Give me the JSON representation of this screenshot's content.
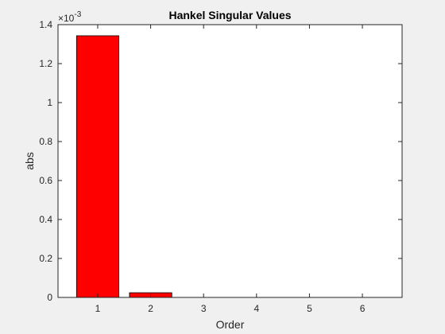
{
  "chart_data": {
    "type": "bar",
    "title": "Hankel Singular Values",
    "xlabel": "Order",
    "ylabel": "abs",
    "categories": [
      "1",
      "2",
      "3",
      "4",
      "5",
      "6"
    ],
    "values": [
      0.001343,
      2.41e-05,
      2e-07,
      1e-07,
      5e-08,
      2e-08
    ],
    "ylim": [
      0,
      0.0014
    ],
    "xlim": [
      0.25,
      6.75
    ],
    "y_tick_labels": [
      "0",
      "0.2",
      "0.4",
      "0.6",
      "0.8",
      "1",
      "1.2",
      "1.4"
    ],
    "y_exponent_text": "×10",
    "y_exponent_power": "-3",
    "bar_color": "#ff0000",
    "bar_edge_color": "#000000",
    "background_color": "#f0f0f0",
    "axes_color": "#ffffff",
    "grid": false
  }
}
